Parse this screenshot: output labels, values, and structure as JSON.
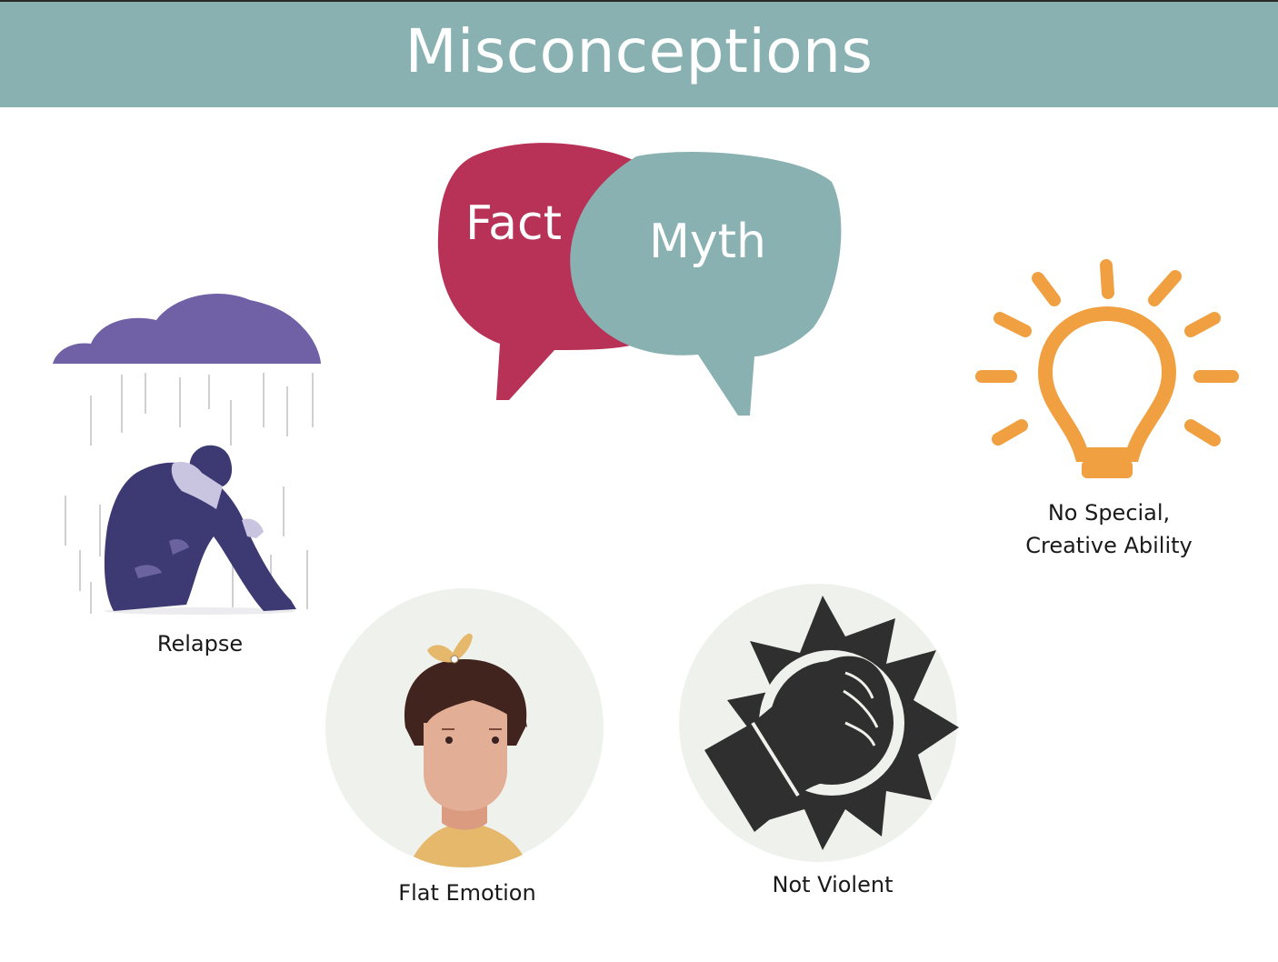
{
  "header": {
    "title": "Misconceptions",
    "background_color": "#89b1b2"
  },
  "speech_bubbles": {
    "fact_label": "Fact",
    "myth_label": "Myth",
    "fact_color": "#b83257",
    "myth_color": "#89b1b2"
  },
  "items": {
    "relapse": {
      "label": "Relapse",
      "icon": "sad-person-under-rain-cloud-icon"
    },
    "flat_emotion": {
      "label": "Flat Emotion",
      "icon": "expressionless-girl-face-icon"
    },
    "not_violent": {
      "label": "Not Violent",
      "icon": "raised-fist-burst-icon"
    },
    "creative": {
      "label_line1": "No Special,",
      "label_line2": "Creative Ability",
      "icon": "light-bulb-icon"
    }
  },
  "colors": {
    "cloud": "#7060a6",
    "person": "#3d3a73",
    "light_bulb": "#f0a040",
    "circle_bg": "#eff2ec",
    "fist": "#2f2f2f"
  }
}
